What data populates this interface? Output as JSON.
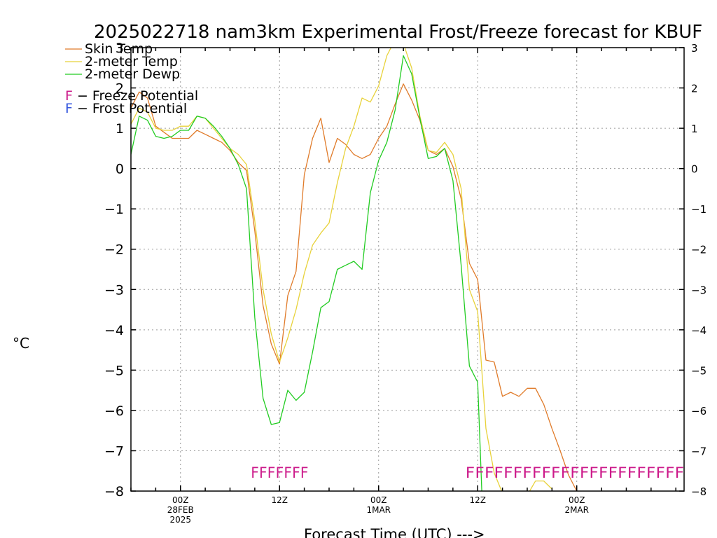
{
  "chart_data": {
    "type": "line",
    "title": "2025022718 nam3km Experimental Frost/Freeze forecast for KBUF",
    "xlabel": "Forecast Time (UTC) --->",
    "ylabel": "°C",
    "ylim": [
      -8,
      3
    ],
    "xlim": [
      18,
      85
    ],
    "yticks": [
      -8,
      -7,
      -6,
      -5,
      -4,
      -3,
      -2,
      -1,
      0,
      1,
      2,
      3
    ],
    "ytick_labels": [
      "−8",
      "−7",
      "−6",
      "−5",
      "−4",
      "−3",
      "−2",
      "−1",
      "0",
      "1",
      "2",
      "3"
    ],
    "xticks": [
      {
        "x": 24,
        "label": "00Z",
        "date": "28FEB",
        "year": "2025"
      },
      {
        "x": 36,
        "label": "12Z",
        "date": "",
        "year": ""
      },
      {
        "x": 48,
        "label": "00Z",
        "date": "1MAR",
        "year": ""
      },
      {
        "x": 60,
        "label": "12Z",
        "date": "",
        "year": ""
      },
      {
        "x": 72,
        "label": "00Z",
        "date": "2MAR",
        "year": ""
      }
    ],
    "grid": true,
    "legend": {
      "position": "top-left",
      "series_labels": [
        "Skin Temp",
        "2-meter Temp",
        "2-meter Dewp"
      ],
      "markers": [
        {
          "symbol": "F",
          "text": " − Freeze Potential",
          "color": "#cc1a8a"
        },
        {
          "symbol": "F",
          "text": " − Frost Potential",
          "color": "#3355dd"
        }
      ]
    },
    "series": [
      {
        "name": "Skin Temp",
        "color": "#e07b2a",
        "x": [
          18,
          19,
          20,
          21,
          22,
          23,
          24,
          25,
          26,
          27,
          28,
          29,
          30,
          31,
          32,
          33,
          34,
          35,
          36,
          37,
          38,
          39,
          40,
          41,
          42,
          43,
          44,
          45,
          46,
          47,
          48,
          49,
          50,
          51,
          52,
          53,
          54,
          55,
          56,
          57,
          58,
          59,
          60,
          61,
          62,
          63,
          64,
          65,
          66,
          67,
          68,
          69,
          70,
          71,
          72
        ],
        "y": [
          1.5,
          1.9,
          1.75,
          1.05,
          0.9,
          0.75,
          0.75,
          0.75,
          0.95,
          0.85,
          0.75,
          0.65,
          0.45,
          0.15,
          -0.05,
          -1.55,
          -3.4,
          -4.35,
          -4.85,
          -3.15,
          -2.55,
          -0.15,
          0.75,
          1.25,
          0.15,
          0.75,
          0.6,
          0.35,
          0.25,
          0.35,
          0.75,
          1.05,
          1.6,
          2.1,
          1.7,
          1.2,
          0.45,
          0.35,
          0.5,
          0.05,
          -0.75,
          -2.35,
          -2.75,
          -4.75,
          -4.8,
          -5.65,
          -5.55,
          -5.65,
          -5.45,
          -5.45,
          -5.85,
          -6.45,
          -7.0,
          -7.6,
          -8.0
        ]
      },
      {
        "name": "2-meter Temp",
        "color": "#e8d23a",
        "x": [
          18,
          19,
          20,
          21,
          22,
          23,
          24,
          25,
          26,
          27,
          28,
          29,
          30,
          31,
          32,
          33,
          34,
          35,
          36,
          37,
          38,
          39,
          40,
          41,
          42,
          43,
          44,
          45,
          46,
          47,
          48,
          49,
          50,
          51,
          52,
          53,
          54,
          55,
          56,
          57,
          58,
          59,
          60,
          61,
          62,
          63,
          64,
          65,
          66,
          67,
          68,
          69
        ],
        "y": [
          1.1,
          1.5,
          1.4,
          1.0,
          0.95,
          0.95,
          1.05,
          1.05,
          1.3,
          1.25,
          1.0,
          0.75,
          0.5,
          0.35,
          0.1,
          -1.3,
          -3.0,
          -4.1,
          -4.8,
          -4.2,
          -3.5,
          -2.6,
          -1.9,
          -1.6,
          -1.35,
          -0.35,
          0.5,
          1.05,
          1.75,
          1.65,
          2.05,
          2.8,
          3.2,
          3.1,
          2.5,
          1.3,
          0.45,
          0.4,
          0.65,
          0.35,
          -0.5,
          -3.0,
          -3.55,
          -6.45,
          -7.55,
          -8.05,
          -8.1,
          -8.1,
          -8.1,
          -7.75,
          -7.75,
          -7.95
        ]
      },
      {
        "name": "2-meter Dewp",
        "color": "#22cc22",
        "x": [
          18,
          19,
          20,
          21,
          22,
          23,
          24,
          25,
          26,
          27,
          28,
          29,
          30,
          31,
          32,
          33,
          34,
          35,
          36,
          37,
          38,
          39,
          40,
          41,
          42,
          43,
          44,
          45,
          46,
          47,
          48,
          49,
          50,
          51,
          52,
          53,
          54,
          55,
          56,
          57,
          58,
          59,
          60,
          60.5
        ],
        "y": [
          0.35,
          1.3,
          1.2,
          0.8,
          0.75,
          0.8,
          0.95,
          0.95,
          1.3,
          1.25,
          1.05,
          0.8,
          0.5,
          0.1,
          -0.5,
          -3.7,
          -5.7,
          -6.35,
          -6.3,
          -5.5,
          -5.75,
          -5.55,
          -4.55,
          -3.45,
          -3.3,
          -2.5,
          -2.4,
          -2.3,
          -2.5,
          -0.6,
          0.2,
          0.65,
          1.45,
          2.8,
          2.35,
          1.25,
          0.25,
          0.3,
          0.5,
          -0.3,
          -2.4,
          -4.9,
          -5.3,
          -8.0
        ]
      }
    ],
    "freeze_markers": [
      {
        "x_start": 32.5,
        "x_end": 39.5,
        "y": -7.55,
        "text": "FFFFFFF",
        "color": "#cc1a8a"
      },
      {
        "x_start": 58.5,
        "x_end": 85,
        "y": -7.55,
        "text": "FFFFFFFFFFFFFFFFFFFFFFF",
        "color": "#cc1a8a"
      }
    ]
  }
}
